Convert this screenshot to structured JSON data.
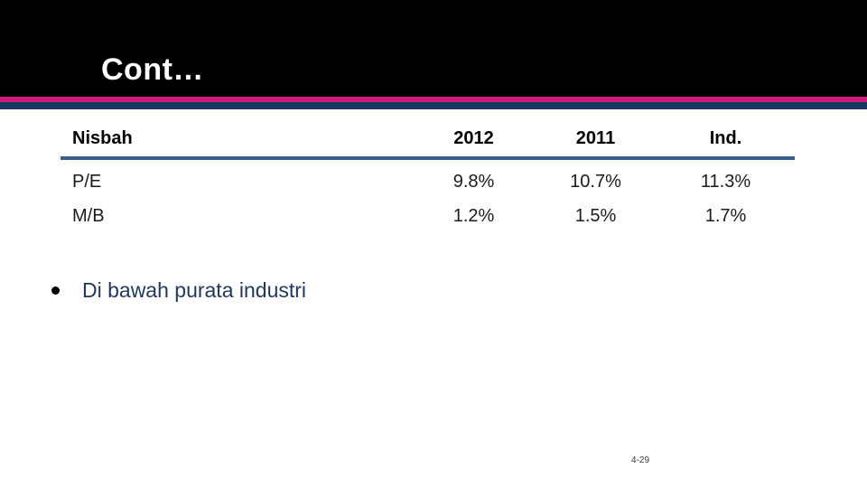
{
  "header": {
    "title": "Cont…"
  },
  "table": {
    "headers": [
      "Nisbah",
      "2012",
      "2011",
      "Ind."
    ],
    "rows": [
      {
        "label": "P/E",
        "values": [
          "9.8%",
          "10.7%",
          "11.3%"
        ]
      },
      {
        "label": "M/B",
        "values": [
          "1.2%",
          "1.5%",
          "1.7%"
        ]
      }
    ]
  },
  "bullet": {
    "text": "Di bawah purata industri"
  },
  "footer": {
    "page_number": "4-29"
  },
  "colors": {
    "accent_pink": "#CE1A7B",
    "accent_navy": "#17375E",
    "table_rule": "#376091",
    "bullet_text": "#1F3864",
    "header_background": "#000000"
  }
}
